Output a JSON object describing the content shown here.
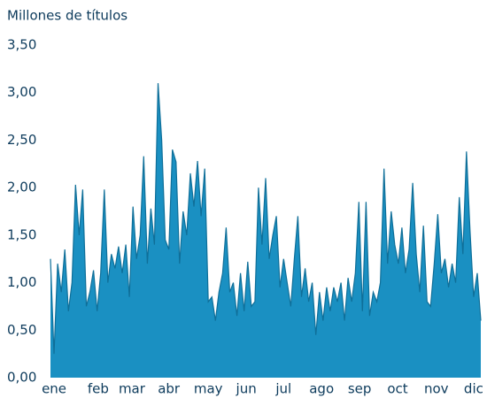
{
  "chart_data": {
    "type": "area",
    "title": "Millones de títulos",
    "color": "#1a90c2",
    "line_color": "#0f6f99",
    "values": [
      1.25,
      0.25,
      1.2,
      0.9,
      1.35,
      0.7,
      1.0,
      2.03,
      1.5,
      1.98,
      0.75,
      0.9,
      1.13,
      0.7,
      1.1,
      1.98,
      1.0,
      1.3,
      1.15,
      1.38,
      1.1,
      1.4,
      0.85,
      1.8,
      1.25,
      1.5,
      2.33,
      1.2,
      1.78,
      1.4,
      3.1,
      2.5,
      1.45,
      1.35,
      2.4,
      2.27,
      1.2,
      1.75,
      1.5,
      2.15,
      1.8,
      2.28,
      1.7,
      2.2,
      0.8,
      0.85,
      0.6,
      0.9,
      1.1,
      1.58,
      0.9,
      1.0,
      0.65,
      1.1,
      0.7,
      1.22,
      0.75,
      0.8,
      2.0,
      1.4,
      2.1,
      1.25,
      1.5,
      1.7,
      0.95,
      1.25,
      1.0,
      0.75,
      1.25,
      1.7,
      0.85,
      1.15,
      0.8,
      1.0,
      0.45,
      0.9,
      0.6,
      0.95,
      0.7,
      0.95,
      0.8,
      1.0,
      0.6,
      1.05,
      0.8,
      1.1,
      1.85,
      0.7,
      1.85,
      0.65,
      0.9,
      0.8,
      1.0,
      2.2,
      1.2,
      1.75,
      1.4,
      1.2,
      1.58,
      1.1,
      1.35,
      2.05,
      1.3,
      0.9,
      1.6,
      0.8,
      0.75,
      1.2,
      1.72,
      1.1,
      1.25,
      0.95,
      1.2,
      1.0,
      1.9,
      1.3,
      2.38,
      1.55,
      0.85,
      1.1,
      0.6
    ],
    "xlim": [
      0,
      120
    ],
    "xticks": [
      {
        "value": 1,
        "label": "ene"
      },
      {
        "value": 13.3,
        "label": "feb"
      },
      {
        "value": 22.7,
        "label": "mar"
      },
      {
        "value": 33,
        "label": "abr"
      },
      {
        "value": 44,
        "label": "may"
      },
      {
        "value": 54.6,
        "label": "jun"
      },
      {
        "value": 65,
        "label": "jul"
      },
      {
        "value": 75.6,
        "label": "ago"
      },
      {
        "value": 86.2,
        "label": "sep"
      },
      {
        "value": 96.8,
        "label": "oct"
      },
      {
        "value": 107.6,
        "label": "nov"
      },
      {
        "value": 118,
        "label": "dic"
      }
    ],
    "ylim": [
      0,
      3.5
    ],
    "yticks": [
      {
        "value": 0,
        "label": "0,00"
      },
      {
        "value": 0.5,
        "label": "0,50"
      },
      {
        "value": 1,
        "label": "1,00"
      },
      {
        "value": 1.5,
        "label": "1,50"
      },
      {
        "value": 2,
        "label": "2,00"
      },
      {
        "value": 2.5,
        "label": "2,50"
      },
      {
        "value": 3,
        "label": "3,00"
      },
      {
        "value": 3.5,
        "label": "3,50"
      }
    ]
  }
}
